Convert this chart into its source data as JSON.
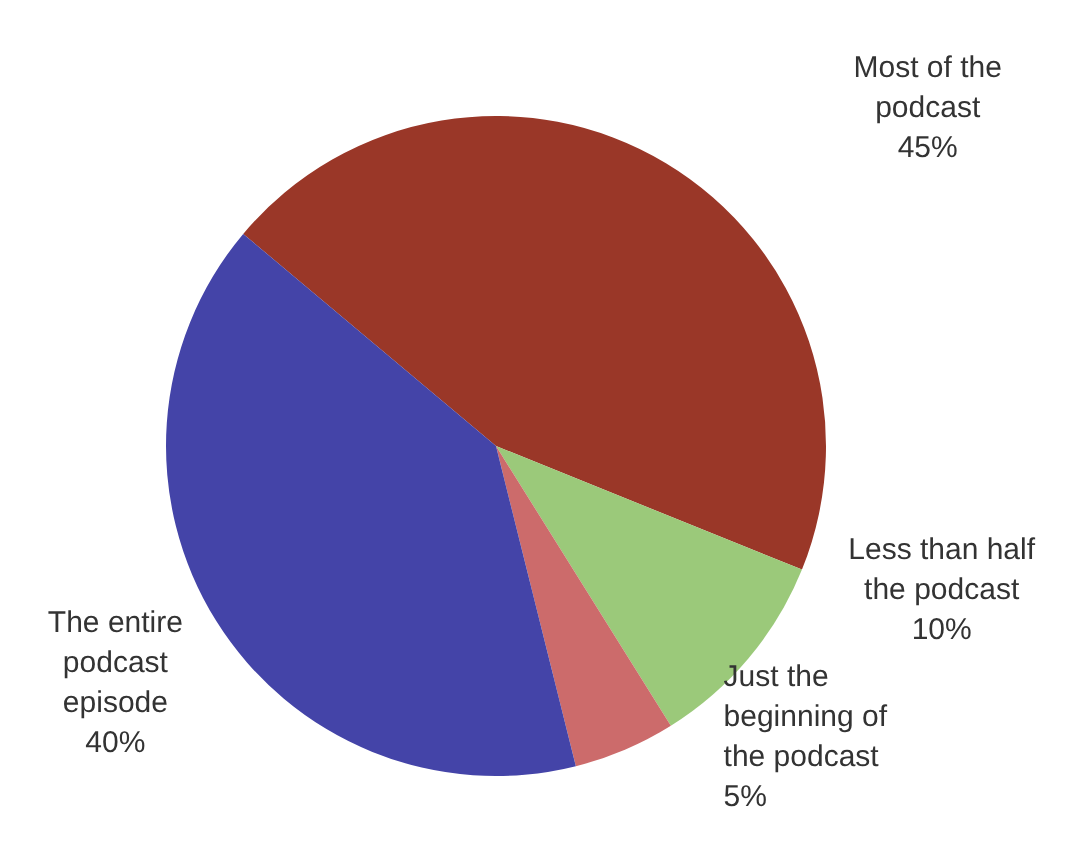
{
  "chart_data": {
    "type": "pie",
    "categories": [
      "Most of the podcast",
      "Less than half the podcast",
      "Just the beginning of the podcast",
      "The entire podcast episode"
    ],
    "values": [
      45,
      10,
      5,
      40
    ],
    "colors": [
      "#9a3728",
      "#9bc97a",
      "#cc6b6b",
      "#4444a8"
    ],
    "value_labels": [
      "45%",
      "10%",
      "5%",
      "40%"
    ],
    "legend": false
  }
}
